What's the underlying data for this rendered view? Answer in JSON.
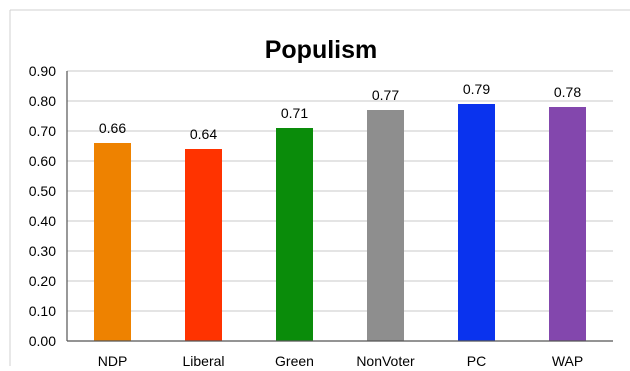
{
  "chart_data": {
    "type": "bar",
    "title": "Populism",
    "xlabel": "",
    "ylabel": "",
    "categories": [
      "NDP",
      "Liberal",
      "Green",
      "NonVoter",
      "PC",
      "WAP"
    ],
    "values": [
      0.66,
      0.64,
      0.71,
      0.77,
      0.79,
      0.78
    ],
    "data_labels": [
      "0.66",
      "0.64",
      "0.71",
      "0.77",
      "0.79",
      "0.78"
    ],
    "colors": [
      "#ee8200",
      "#ff3300",
      "#0a8c0a",
      "#8e8e8e",
      "#0a33ee",
      "#8347ad"
    ],
    "ylim": [
      0,
      0.9
    ],
    "yticks": [
      0,
      0.1,
      0.2,
      0.3,
      0.4,
      0.5,
      0.6,
      0.7,
      0.8,
      0.9
    ],
    "ytick_labels": [
      "0.00",
      "0.10",
      "0.20",
      "0.30",
      "0.40",
      "0.50",
      "0.60",
      "0.70",
      "0.80",
      "0.90"
    ],
    "grid": true,
    "legend": "none"
  }
}
